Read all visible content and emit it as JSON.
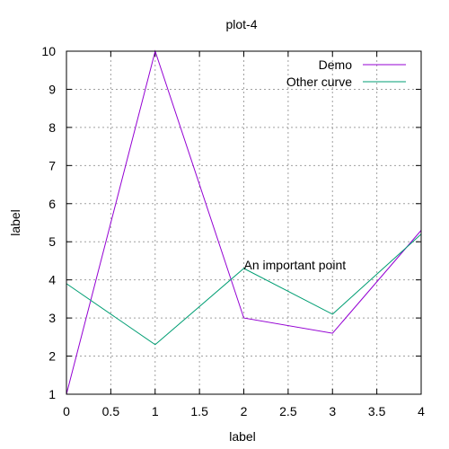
{
  "chart_data": {
    "type": "line",
    "title": "plot-4",
    "xlabel": "label",
    "ylabel": "label",
    "xlim": [
      0,
      4
    ],
    "ylim": [
      1,
      10
    ],
    "x_ticks": [
      "0",
      "0.5",
      "1",
      "1.5",
      "2",
      "2.5",
      "3",
      "3.5",
      "4"
    ],
    "y_ticks": [
      "1",
      "2",
      "3",
      "4",
      "5",
      "6",
      "7",
      "8",
      "9",
      "10"
    ],
    "grid": true,
    "legend_position": "top-right",
    "series": [
      {
        "name": "Demo",
        "color": "#9400d3",
        "x": [
          0,
          1,
          2,
          3,
          4
        ],
        "y": [
          1,
          10,
          3,
          2.6,
          5.3
        ]
      },
      {
        "name": "Other curve",
        "color": "#009e73",
        "x": [
          0,
          1,
          2,
          3,
          4
        ],
        "y": [
          3.9,
          2.3,
          4.3,
          3.1,
          5.2
        ]
      }
    ],
    "annotations": [
      {
        "text": "An important point",
        "x": 2,
        "y": 4.3
      }
    ]
  }
}
